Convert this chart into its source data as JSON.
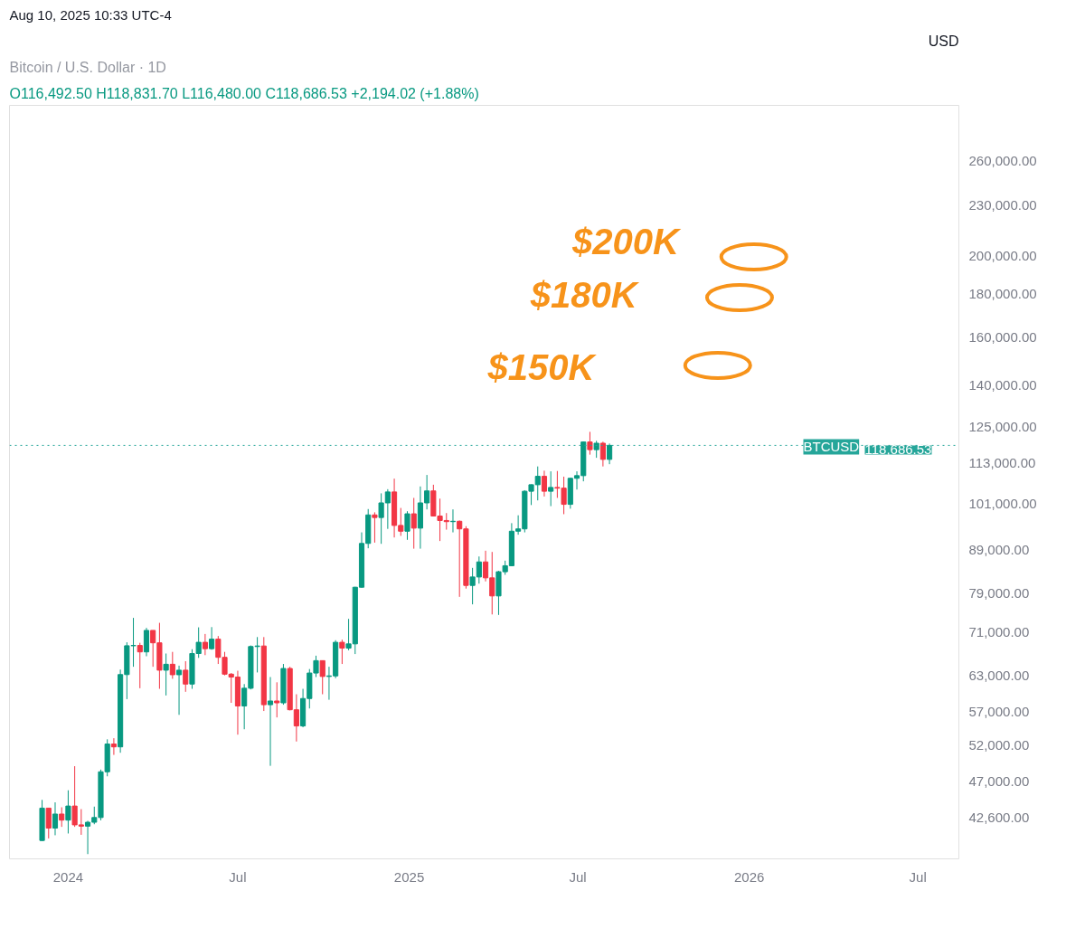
{
  "chart_data": {
    "type": "candlestick",
    "title": "Bitcoin / U.S. Dollar · 1D",
    "subtitle": "O116,492.50 H118,831.70 L116,480.00 C118,686.53 +2,194.02 (+1.88%)",
    "annotations": [
      "Aug 10, 2025 10:33 UTC-4",
      "USD",
      "$200K",
      "$180K",
      "$150K",
      "118,686.53"
    ],
    "x": [
      "2023-12-04",
      "2023-12-11",
      "2023-12-18",
      "2023-12-25",
      "2024-01-01",
      "2024-01-08",
      "2024-01-15",
      "2024-01-22",
      "2024-01-29",
      "2024-02-05",
      "2024-02-12",
      "2024-02-19",
      "2024-02-26",
      "2024-03-04",
      "2024-03-11",
      "2024-03-18",
      "2024-03-25",
      "2024-04-01",
      "2024-04-08",
      "2024-04-15",
      "2024-04-22",
      "2024-04-29",
      "2024-05-06",
      "2024-05-13",
      "2024-05-20",
      "2024-05-27",
      "2024-06-03",
      "2024-06-10",
      "2024-06-17",
      "2024-06-24",
      "2024-07-01",
      "2024-07-08",
      "2024-07-15",
      "2024-07-22",
      "2024-07-29",
      "2024-08-05",
      "2024-08-12",
      "2024-08-19",
      "2024-08-26",
      "2024-09-02",
      "2024-09-09",
      "2024-09-16",
      "2024-09-23",
      "2024-09-30",
      "2024-10-07",
      "2024-10-14",
      "2024-10-21",
      "2024-10-28",
      "2024-11-04",
      "2024-11-11",
      "2024-11-18",
      "2024-11-25",
      "2024-12-02",
      "2024-12-09",
      "2024-12-16",
      "2024-12-23",
      "2024-12-30",
      "2025-01-06",
      "2025-01-13",
      "2025-01-20",
      "2025-01-27",
      "2025-02-03",
      "2025-02-10",
      "2025-02-17",
      "2025-02-24",
      "2025-03-03",
      "2025-03-10",
      "2025-03-17",
      "2025-03-24",
      "2025-03-31",
      "2025-04-07",
      "2025-04-14",
      "2025-04-21",
      "2025-04-28",
      "2025-05-05",
      "2025-05-12",
      "2025-05-19",
      "2025-05-26",
      "2025-06-02",
      "2025-06-09",
      "2025-06-16",
      "2025-06-23",
      "2025-06-30",
      "2025-07-07",
      "2025-07-14",
      "2025-07-21",
      "2025-07-28",
      "2025-08-04"
    ],
    "ohlc": [
      [
        39970,
        44700,
        39900,
        43700
      ],
      [
        43700,
        43700,
        40200,
        41360
      ],
      [
        41360,
        44400,
        40550,
        42990
      ],
      [
        42990,
        43800,
        41500,
        42280
      ],
      [
        42280,
        45900,
        40750,
        43950
      ],
      [
        43950,
        49050,
        41500,
        41730
      ],
      [
        41730,
        43580,
        40600,
        41580
      ],
      [
        41580,
        42200,
        38500,
        42030
      ],
      [
        42030,
        43880,
        41800,
        42580
      ],
      [
        42580,
        48590,
        42250,
        48300
      ],
      [
        48300,
        52820,
        47700,
        52140
      ],
      [
        52140,
        52980,
        50600,
        51730
      ],
      [
        51730,
        64000,
        50900,
        63130
      ],
      [
        63130,
        69000,
        59000,
        68350
      ],
      [
        68350,
        73800,
        64500,
        68400
      ],
      [
        68400,
        68900,
        60800,
        67200
      ],
      [
        67200,
        71800,
        66400,
        71300
      ],
      [
        71300,
        71300,
        64500,
        68900
      ],
      [
        68900,
        72800,
        60700,
        63900
      ],
      [
        63900,
        66900,
        59600,
        64950
      ],
      [
        64950,
        67200,
        62400,
        63100
      ],
      [
        63100,
        64700,
        56500,
        63900
      ],
      [
        63900,
        65500,
        60200,
        61500
      ],
      [
        61500,
        67700,
        60700,
        66900
      ],
      [
        66900,
        71900,
        66100,
        69000
      ],
      [
        69000,
        70600,
        66600,
        67800
      ],
      [
        67800,
        71950,
        67600,
        69600
      ],
      [
        69600,
        70200,
        65000,
        66200
      ],
      [
        66200,
        67200,
        63000,
        63200
      ],
      [
        63200,
        63400,
        58400,
        62700
      ],
      [
        62700,
        63800,
        53500,
        57900
      ],
      [
        57900,
        61500,
        54300,
        60800
      ],
      [
        60800,
        68400,
        60600,
        68200
      ],
      [
        68200,
        70000,
        63500,
        68300
      ],
      [
        68300,
        70000,
        57100,
        58100
      ],
      [
        58100,
        62700,
        49100,
        58700
      ],
      [
        58700,
        61800,
        56100,
        58400
      ],
      [
        58400,
        65000,
        58100,
        64200
      ],
      [
        64200,
        64500,
        57200,
        57300
      ],
      [
        57300,
        59800,
        52500,
        54800
      ],
      [
        54800,
        60700,
        54600,
        59100
      ],
      [
        59100,
        64100,
        57500,
        63400
      ],
      [
        63400,
        66500,
        62700,
        65600
      ],
      [
        65600,
        65600,
        59800,
        62800
      ],
      [
        62800,
        64500,
        58900,
        62900
      ],
      [
        62900,
        69400,
        62500,
        69000
      ],
      [
        69000,
        69500,
        65000,
        67900
      ],
      [
        67900,
        73600,
        67500,
        68700
      ],
      [
        68700,
        80400,
        66800,
        80300
      ],
      [
        80300,
        93400,
        80200,
        90600
      ],
      [
        90600,
        99600,
        89400,
        98000
      ],
      [
        98000,
        98700,
        90800,
        97300
      ],
      [
        97300,
        104000,
        90500,
        101300
      ],
      [
        101300,
        105200,
        94300,
        104400
      ],
      [
        104400,
        108300,
        92100,
        95200
      ],
      [
        95200,
        99900,
        92500,
        93700
      ],
      [
        93700,
        99000,
        91500,
        98300
      ],
      [
        98300,
        102700,
        89300,
        94500
      ],
      [
        94500,
        106000,
        89300,
        101300
      ],
      [
        101300,
        109400,
        99500,
        104700
      ],
      [
        104700,
        106500,
        97700,
        97700
      ],
      [
        97700,
        102500,
        91200,
        96500
      ],
      [
        96500,
        98500,
        94100,
        96200
      ],
      [
        96200,
        99500,
        93400,
        96300
      ],
      [
        96300,
        96500,
        78200,
        94300
      ],
      [
        94300,
        95000,
        80000,
        80700
      ],
      [
        80700,
        84700,
        76600,
        82600
      ],
      [
        82600,
        87400,
        81100,
        86100
      ],
      [
        86100,
        88800,
        81600,
        82400
      ],
      [
        82400,
        88500,
        74500,
        78400
      ],
      [
        78400,
        84000,
        74400,
        83800
      ],
      [
        83800,
        86400,
        83100,
        85200
      ],
      [
        85200,
        95800,
        85100,
        93700
      ],
      [
        93700,
        97900,
        92800,
        94300
      ],
      [
        94300,
        104900,
        93400,
        104600
      ],
      [
        104600,
        106600,
        100700,
        106500
      ],
      [
        106500,
        112000,
        102000,
        109000
      ],
      [
        109000,
        110700,
        103100,
        104600
      ],
      [
        104600,
        110500,
        100400,
        105700
      ],
      [
        105700,
        110600,
        102700,
        105500
      ],
      [
        105500,
        108900,
        98200,
        100900
      ],
      [
        100900,
        108500,
        99700,
        108400
      ],
      [
        108400,
        110500,
        105100,
        109200
      ],
      [
        109200,
        119900,
        107500,
        119800
      ],
      [
        119800,
        123200,
        115700,
        117300
      ],
      [
        117300,
        120200,
        114700,
        119400
      ],
      [
        119400,
        119900,
        112000,
        114200
      ],
      [
        114200,
        119300,
        112700,
        118686.53
      ]
    ],
    "log": true,
    "xlim": [
      "2023-10-30",
      "2026-08-14"
    ],
    "xticks": [
      {
        "value": "2024-01-01",
        "label": "2024"
      },
      {
        "value": "2024-07-01",
        "label": "Jul"
      },
      {
        "value": "2025-01-01",
        "label": "2025"
      },
      {
        "value": "2025-07-01",
        "label": "Jul"
      },
      {
        "value": "2026-01-01",
        "label": "2026"
      },
      {
        "value": "2026-07-01",
        "label": "Jul"
      }
    ],
    "ylim": [
      38000,
      302800
    ],
    "yticks": [
      {
        "value": 42600,
        "label": "42,600.00"
      },
      {
        "value": 47000,
        "label": "47,000.00"
      },
      {
        "value": 52000,
        "label": "52,000.00"
      },
      {
        "value": 57000,
        "label": "57,000.00"
      },
      {
        "value": 63000,
        "label": "63,000.00"
      },
      {
        "value": 71000,
        "label": "71,000.00"
      },
      {
        "value": 79000,
        "label": "79,000.00"
      },
      {
        "value": 89000,
        "label": "89,000.00"
      },
      {
        "value": 101000,
        "label": "101,000.00"
      },
      {
        "value": 113000,
        "label": "113,000.00"
      },
      {
        "value": 125000,
        "label": "125,000.00"
      },
      {
        "value": 140000,
        "label": "140,000.00"
      },
      {
        "value": 160000,
        "label": "160,000.00"
      },
      {
        "value": 180000,
        "label": "180,000.00"
      },
      {
        "value": 200000,
        "label": "200,000.00"
      },
      {
        "value": 230000,
        "label": "230,000.00"
      },
      {
        "value": 260000,
        "label": "260,000.00"
      }
    ],
    "ref_lines": [
      {
        "axis": "y",
        "value": 118686.53,
        "label": "BTCUSD",
        "color": "#26a69a",
        "line_style": "dotted"
      }
    ]
  }
}
